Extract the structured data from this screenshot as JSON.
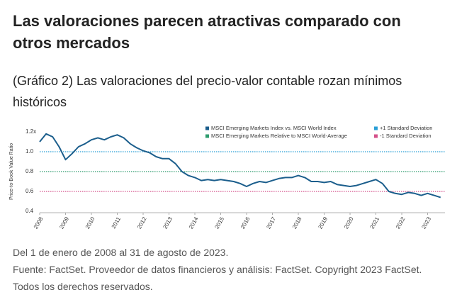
{
  "header": {
    "title": "Las valoraciones parecen atractivas comparado con otros mercados",
    "subtitle": "(Gráfico 2) Las valoraciones del precio-valor contable rozan mínimos históricos"
  },
  "notes": [
    "Del 1 de enero de 2008 al 31 de agosto de 2023.",
    "Fuente: FactSet. Proveedor de datos financieros y análisis: FactSet. Copyright 2023 FactSet. Todos los derechos reservados."
  ],
  "chart_data": {
    "type": "line",
    "y_label": "Price-to-Book Value Ratio",
    "x": [
      2008,
      2008.25,
      2008.5,
      2008.75,
      2009,
      2009.25,
      2009.5,
      2009.75,
      2010,
      2010.25,
      2010.5,
      2010.75,
      2011,
      2011.25,
      2011.5,
      2011.75,
      2012,
      2012.25,
      2012.5,
      2012.75,
      2013,
      2013.25,
      2013.5,
      2013.75,
      2014,
      2014.25,
      2014.5,
      2014.75,
      2015,
      2015.25,
      2015.5,
      2015.75,
      2016,
      2016.25,
      2016.5,
      2016.75,
      2017,
      2017.25,
      2017.5,
      2017.75,
      2018,
      2018.25,
      2018.5,
      2018.75,
      2019,
      2019.25,
      2019.5,
      2019.75,
      2020,
      2020.25,
      2020.5,
      2020.75,
      2021,
      2021.25,
      2021.5,
      2021.75,
      2022,
      2022.25,
      2022.5,
      2022.75,
      2023,
      2023.25,
      2023.5
    ],
    "series": [
      {
        "name": "MSCI Emerging Markets Index vs. MSCI World Index",
        "color": "#1b5e8c",
        "values": [
          1.1,
          1.18,
          1.15,
          1.05,
          0.92,
          0.98,
          1.05,
          1.08,
          1.12,
          1.14,
          1.12,
          1.15,
          1.17,
          1.14,
          1.08,
          1.04,
          1.01,
          0.99,
          0.95,
          0.93,
          0.93,
          0.88,
          0.8,
          0.76,
          0.74,
          0.71,
          0.72,
          0.71,
          0.72,
          0.71,
          0.7,
          0.68,
          0.65,
          0.68,
          0.7,
          0.69,
          0.71,
          0.73,
          0.74,
          0.74,
          0.76,
          0.74,
          0.7,
          0.7,
          0.69,
          0.7,
          0.67,
          0.66,
          0.65,
          0.66,
          0.68,
          0.7,
          0.72,
          0.68,
          0.6,
          0.58,
          0.57,
          0.59,
          0.58,
          0.56,
          0.58,
          0.56,
          0.54
        ]
      }
    ],
    "reference_lines": [
      {
        "name": "+1 Standard Deviation",
        "value": 1.0,
        "color": "#2a9fd6"
      },
      {
        "name": "MSCI Emerging Markets Relative to MSCI World-Average",
        "value": 0.8,
        "color": "#2e9c6e"
      },
      {
        "name": "-1 Standard Deviation",
        "value": 0.6,
        "color": "#d4508a"
      }
    ],
    "xlim": [
      2008,
      2023.67
    ],
    "xticks": [
      2008,
      2009,
      2010,
      2011,
      2012,
      2013,
      2014,
      2015,
      2016,
      2017,
      2018,
      2019,
      2020,
      2021,
      2022,
      2023
    ],
    "ylim": [
      0.4,
      1.2
    ],
    "yticks": [
      0.4,
      0.6,
      0.8,
      {
        "value": 1.0,
        "label": "1.0"
      },
      {
        "value": 1.2,
        "label": "1.2x"
      }
    ]
  }
}
